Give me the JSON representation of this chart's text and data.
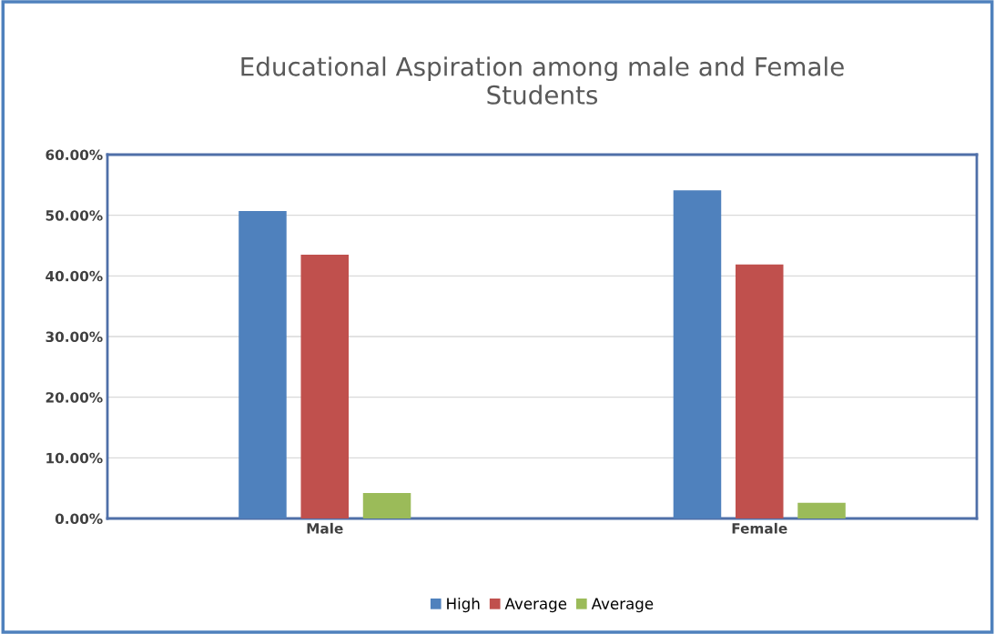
{
  "chart_data": {
    "type": "bar",
    "title": "Educational Aspiration among male and Female\nStudents",
    "categories": [
      "Male",
      "Female"
    ],
    "series": [
      {
        "name": "High",
        "color": "#4f81bd",
        "values": [
          0.507,
          0.541
        ]
      },
      {
        "name": "Average",
        "color": "#c0504d",
        "values": [
          0.435,
          0.419
        ]
      },
      {
        "name": "Average",
        "color": "#9bbb59",
        "values": [
          0.042,
          0.026
        ]
      }
    ],
    "ylim": [
      0,
      0.6
    ],
    "yticks": [
      {
        "value": 0,
        "label": "0.00%"
      },
      {
        "value": 0.1,
        "label": "10.00%"
      },
      {
        "value": 0.2,
        "label": "20.00%"
      },
      {
        "value": 0.3,
        "label": "30.00%"
      },
      {
        "value": 0.4,
        "label": "40.00%"
      },
      {
        "value": 0.5,
        "label": "50.00%"
      },
      {
        "value": 0.6,
        "label": "60.00%"
      }
    ],
    "grid": "y",
    "legend": "bottom"
  }
}
